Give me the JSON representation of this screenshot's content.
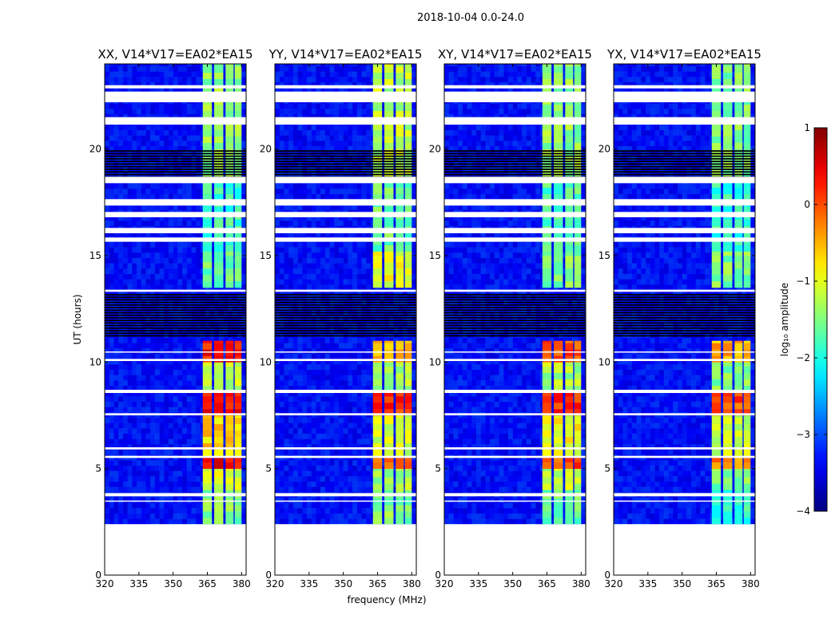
{
  "figure": {
    "suptitle": "2018-10-04 0.0-24.0",
    "xlabel": "frequency (MHz)",
    "ylabel": "UT (hours)",
    "colorbar_label": "log₁₀ amplitude",
    "colorbar_cmap": "jet"
  },
  "chart_data": {
    "type": "heatmap",
    "title": "2018-10-04 0.0-24.0",
    "xlabel": "frequency (MHz)",
    "ylabel": "UT (hours)",
    "xlim": [
      320,
      382
    ],
    "ylim": [
      0,
      24
    ],
    "xticks": [
      320,
      335,
      350,
      365,
      380
    ],
    "yticks": [
      0,
      5,
      10,
      15,
      20
    ],
    "colorbar": {
      "label": "log10 amplitude",
      "range": [
        -4,
        1
      ],
      "ticks": [
        -4,
        -3,
        -2,
        -1,
        0,
        1
      ]
    },
    "data_extent_hours": [
      2.4,
      24.0
    ],
    "band_mhz": [
      363,
      380
    ],
    "band_columns_mhz": [
      [
        363,
        367
      ],
      [
        368,
        372
      ],
      [
        373,
        376.5
      ],
      [
        377,
        380
      ]
    ],
    "missing_rows_hours": [
      [
        22.85,
        23.0
      ],
      [
        22.2,
        22.7
      ],
      [
        21.15,
        21.5
      ],
      [
        18.4,
        18.7
      ],
      [
        17.35,
        17.65
      ],
      [
        16.8,
        17.05
      ],
      [
        16.05,
        16.3
      ],
      [
        15.65,
        15.85
      ],
      [
        13.3,
        13.4
      ],
      [
        10.45,
        10.5
      ],
      [
        10.05,
        10.15
      ],
      [
        8.55,
        8.7
      ],
      [
        7.5,
        7.6
      ],
      [
        5.9,
        6.0
      ],
      [
        5.5,
        5.6
      ],
      [
        3.7,
        3.85
      ],
      [
        3.45,
        3.5
      ]
    ],
    "noise_rows_hours": [
      [
        11.2,
        13.25
      ],
      [
        18.65,
        20.0
      ]
    ],
    "panels": [
      {
        "title": "XX, V14*V17=EA02*EA15",
        "band_level": [
          {
            "hours": [
              2.4,
              4.0
            ],
            "log_amp": -1.5
          },
          {
            "hours": [
              4.0,
              5.0
            ],
            "log_amp": -1.1
          },
          {
            "hours": [
              5.0,
              5.6
            ],
            "log_amp": 0.4
          },
          {
            "hours": [
              5.6,
              7.5
            ],
            "log_amp": -0.7
          },
          {
            "hours": [
              7.5,
              8.6
            ],
            "log_amp": 0.3
          },
          {
            "hours": [
              8.6,
              10.0
            ],
            "log_amp": -1.2
          },
          {
            "hours": [
              10.0,
              11.0
            ],
            "log_amp": 0.3
          },
          {
            "hours": [
              13.5,
              15.2
            ],
            "log_amp": -1.6
          },
          {
            "hours": [
              15.2,
              18.5
            ],
            "log_amp": -1.8
          },
          {
            "hours": [
              18.5,
              24.0
            ],
            "log_amp": -1.4
          }
        ]
      },
      {
        "title": "YY, V14*V17=EA02*EA15",
        "band_level": [
          {
            "hours": [
              2.4,
              4.0
            ],
            "log_amp": -1.5
          },
          {
            "hours": [
              4.0,
              5.0
            ],
            "log_amp": -1.3
          },
          {
            "hours": [
              5.0,
              5.6
            ],
            "log_amp": 0.0
          },
          {
            "hours": [
              5.6,
              7.5
            ],
            "log_amp": -1.1
          },
          {
            "hours": [
              7.5,
              8.6
            ],
            "log_amp": 0.2
          },
          {
            "hours": [
              8.6,
              10.0
            ],
            "log_amp": -1.3
          },
          {
            "hours": [
              10.0,
              11.0
            ],
            "log_amp": -0.5
          },
          {
            "hours": [
              13.5,
              15.2
            ],
            "log_amp": -1.0
          },
          {
            "hours": [
              15.2,
              18.5
            ],
            "log_amp": -1.6
          },
          {
            "hours": [
              18.5,
              24.0
            ],
            "log_amp": -1.2
          }
        ]
      },
      {
        "title": "XY, V14*V17=EA02*EA15",
        "band_level": [
          {
            "hours": [
              2.4,
              4.0
            ],
            "log_amp": -1.6
          },
          {
            "hours": [
              4.0,
              5.0
            ],
            "log_amp": -1.2
          },
          {
            "hours": [
              5.0,
              5.6
            ],
            "log_amp": 0.0
          },
          {
            "hours": [
              5.6,
              7.5
            ],
            "log_amp": -0.9
          },
          {
            "hours": [
              7.5,
              8.6
            ],
            "log_amp": 0.2
          },
          {
            "hours": [
              8.6,
              10.0
            ],
            "log_amp": -1.3
          },
          {
            "hours": [
              10.0,
              11.0
            ],
            "log_amp": 0.0
          },
          {
            "hours": [
              13.5,
              15.2
            ],
            "log_amp": -1.5
          },
          {
            "hours": [
              15.2,
              18.5
            ],
            "log_amp": -1.7
          },
          {
            "hours": [
              18.5,
              24.0
            ],
            "log_amp": -1.4
          }
        ]
      },
      {
        "title": "YX, V14*V17=EA02*EA15",
        "band_level": [
          {
            "hours": [
              2.4,
              4.0
            ],
            "log_amp": -1.9
          },
          {
            "hours": [
              4.0,
              5.0
            ],
            "log_amp": -1.5
          },
          {
            "hours": [
              5.0,
              5.6
            ],
            "log_amp": -0.3
          },
          {
            "hours": [
              5.6,
              7.5
            ],
            "log_amp": -1.2
          },
          {
            "hours": [
              7.5,
              8.6
            ],
            "log_amp": 0.0
          },
          {
            "hours": [
              8.6,
              10.0
            ],
            "log_amp": -1.5
          },
          {
            "hours": [
              10.0,
              11.0
            ],
            "log_amp": -0.5
          },
          {
            "hours": [
              13.5,
              15.2
            ],
            "log_amp": -1.5
          },
          {
            "hours": [
              15.2,
              18.5
            ],
            "log_amp": -1.9
          },
          {
            "hours": [
              18.5,
              24.0
            ],
            "log_amp": -1.5
          }
        ]
      }
    ]
  }
}
